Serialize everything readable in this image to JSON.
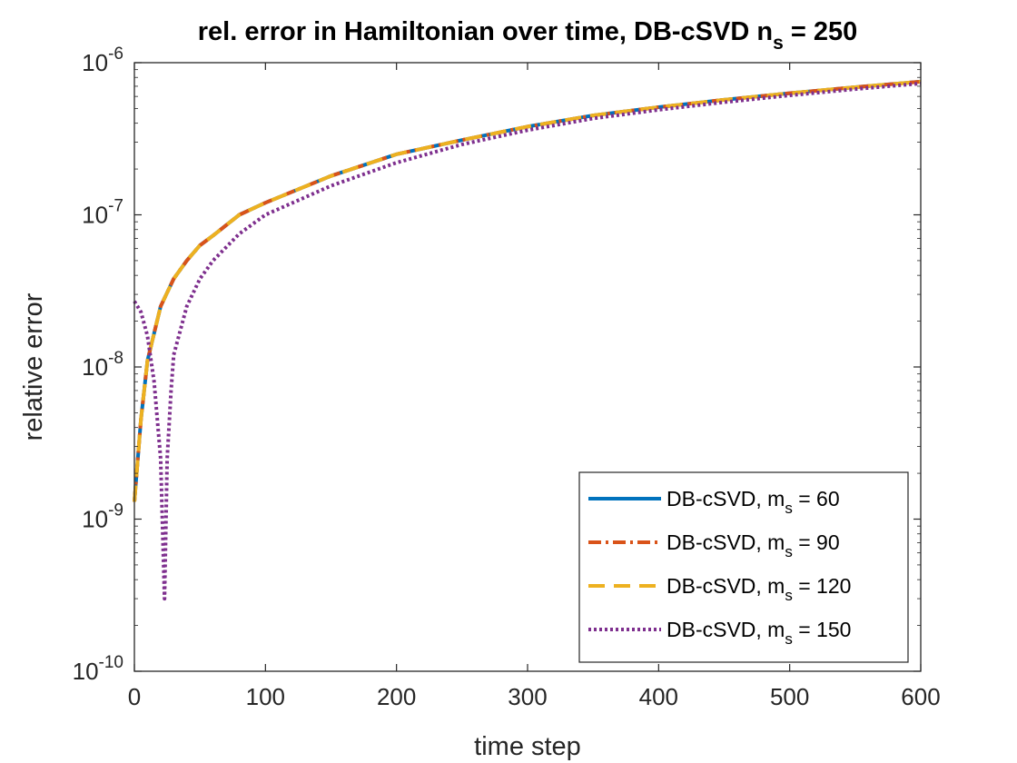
{
  "chart_data": {
    "type": "line",
    "y_scale": "log",
    "title": {
      "main": "rel. error in Hamiltonian over time, DB-cSVD n",
      "sub": "s",
      "tail": " = 250"
    },
    "xlabel": "time step",
    "ylabel": "relative error",
    "xlim": [
      0,
      600
    ],
    "ylim_log10": [
      -10,
      -6
    ],
    "x_ticks": [
      0,
      100,
      200,
      300,
      400,
      500,
      600
    ],
    "y_ticks": [
      {
        "exp": -10,
        "base": "10",
        "power": "-10"
      },
      {
        "exp": -9,
        "base": "10",
        "power": "-9"
      },
      {
        "exp": -8,
        "base": "10",
        "power": "-8"
      },
      {
        "exp": -7,
        "base": "10",
        "power": "-7"
      },
      {
        "exp": -6,
        "base": "10",
        "power": "-6"
      }
    ],
    "legend_position": "bottom-right",
    "series": [
      {
        "name": "DB-cSVD, m_s = 60",
        "label_main": "DB-cSVD, m",
        "label_sub": "s",
        "label_tail": " = 60",
        "color": "#0072BD",
        "dash": "solid",
        "x": [
          0,
          5,
          10,
          20,
          30,
          40,
          50,
          60,
          80,
          100,
          150,
          200,
          250,
          300,
          350,
          400,
          450,
          500,
          550,
          600
        ],
        "y": [
          1.3e-09,
          4.5e-09,
          1.1e-08,
          2.5e-08,
          3.8e-08,
          5e-08,
          6.3e-08,
          7.3e-08,
          1e-07,
          1.2e-07,
          1.8e-07,
          2.5e-07,
          3.1e-07,
          3.8e-07,
          4.5e-07,
          5.1e-07,
          5.7e-07,
          6.3e-07,
          6.9e-07,
          7.5e-07
        ]
      },
      {
        "name": "DB-cSVD, m_s = 90",
        "label_main": "DB-cSVD, m",
        "label_sub": "s",
        "label_tail": " = 90",
        "color": "#D95319",
        "dash": "dashdot",
        "x": [
          0,
          5,
          10,
          20,
          30,
          40,
          50,
          60,
          80,
          100,
          150,
          200,
          250,
          300,
          350,
          400,
          450,
          500,
          550,
          600
        ],
        "y": [
          1.3e-09,
          4.5e-09,
          1.1e-08,
          2.5e-08,
          3.8e-08,
          5e-08,
          6.3e-08,
          7.3e-08,
          1e-07,
          1.2e-07,
          1.8e-07,
          2.5e-07,
          3.1e-07,
          3.8e-07,
          4.5e-07,
          5.1e-07,
          5.7e-07,
          6.3e-07,
          6.9e-07,
          7.5e-07
        ]
      },
      {
        "name": "DB-cSVD, m_s = 120",
        "label_main": "DB-cSVD, m",
        "label_sub": "s",
        "label_tail": " = 120",
        "color": "#EDB120",
        "dash": "dashed",
        "x": [
          0,
          5,
          10,
          20,
          30,
          40,
          50,
          60,
          80,
          100,
          150,
          200,
          250,
          300,
          350,
          400,
          450,
          500,
          550,
          600
        ],
        "y": [
          1.3e-09,
          4.5e-09,
          1.1e-08,
          2.5e-08,
          3.8e-08,
          5e-08,
          6.3e-08,
          7.3e-08,
          1e-07,
          1.2e-07,
          1.8e-07,
          2.5e-07,
          3.1e-07,
          3.8e-07,
          4.5e-07,
          5.1e-07,
          5.7e-07,
          6.3e-07,
          6.9e-07,
          7.5e-07
        ]
      },
      {
        "name": "DB-cSVD, m_s = 150",
        "label_main": "DB-cSVD, m",
        "label_sub": "s",
        "label_tail": " = 150",
        "color": "#7E2F8E",
        "dash": "dotted",
        "x": [
          0,
          5,
          10,
          15,
          20,
          22,
          23,
          25,
          28,
          30,
          40,
          50,
          60,
          80,
          100,
          150,
          200,
          250,
          300,
          350,
          400,
          450,
          500,
          550,
          600
        ],
        "y": [
          2.7e-08,
          2.3e-08,
          1.6e-08,
          8e-09,
          2.5e-09,
          6e-10,
          3e-10,
          2.5e-09,
          7e-09,
          1.2e-08,
          2.5e-08,
          3.8e-08,
          5e-08,
          7.5e-08,
          1e-07,
          1.55e-07,
          2.2e-07,
          2.9e-07,
          3.6e-07,
          4.3e-07,
          4.9e-07,
          5.5e-07,
          6.1e-07,
          6.7e-07,
          7.3e-07
        ]
      }
    ]
  }
}
